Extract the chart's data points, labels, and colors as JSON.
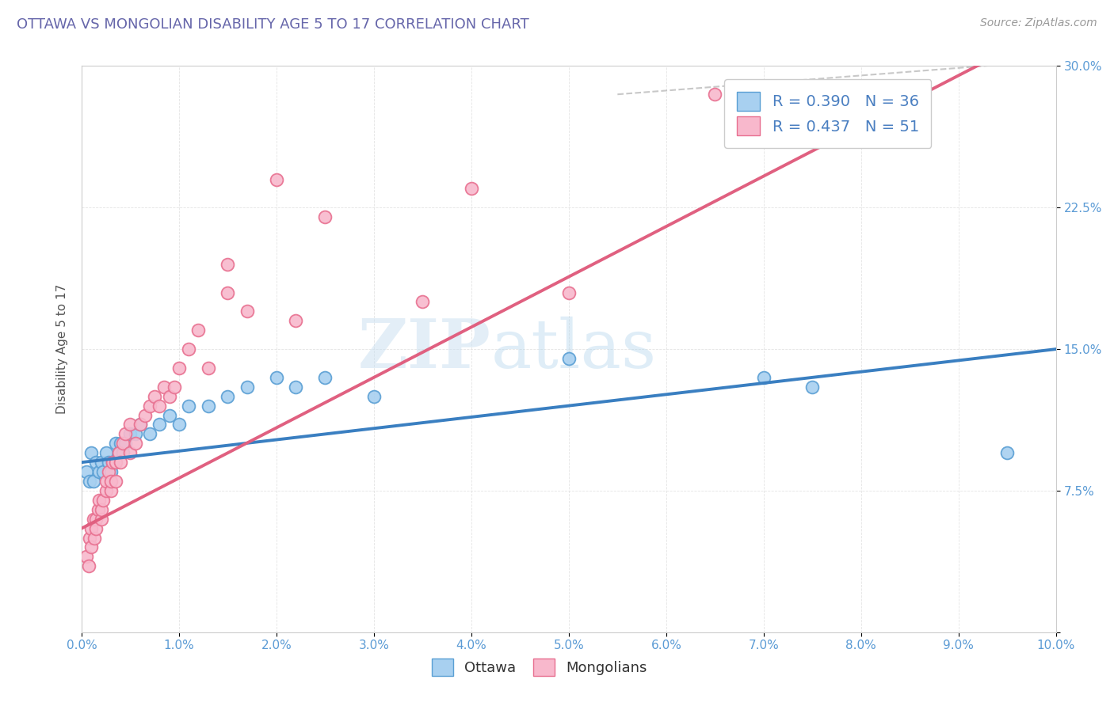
{
  "title": "OTTAWA VS MONGOLIAN DISABILITY AGE 5 TO 17 CORRELATION CHART",
  "source": "Source: ZipAtlas.com",
  "ylabel": "Disability Age 5 to 17",
  "xlim": [
    0.0,
    10.0
  ],
  "ylim": [
    0.0,
    30.0
  ],
  "xticks": [
    0.0,
    1.0,
    2.0,
    3.0,
    4.0,
    5.0,
    6.0,
    7.0,
    8.0,
    9.0,
    10.0
  ],
  "yticks": [
    0.0,
    7.5,
    15.0,
    22.5,
    30.0
  ],
  "xtick_labels": [
    "0.0%",
    "1.0%",
    "2.0%",
    "3.0%",
    "4.0%",
    "5.0%",
    "6.0%",
    "7.0%",
    "8.0%",
    "9.0%",
    "10.0%"
  ],
  "ytick_labels": [
    "",
    "7.5%",
    "15.0%",
    "22.5%",
    "30.0%"
  ],
  "ottawa_R": 0.39,
  "ottawa_N": 36,
  "mongolian_R": 0.437,
  "mongolian_N": 51,
  "ottawa_color": "#a8d0f0",
  "mongolian_color": "#f8b8cc",
  "ottawa_edge_color": "#5a9fd4",
  "mongolian_edge_color": "#e87090",
  "ottawa_line_color": "#3a7fc1",
  "mongolian_line_color": "#e06080",
  "tick_color": "#5b9bd5",
  "legend_text_color": "#4a7fc1",
  "watermark_color": "#d8edf8",
  "title_color": "#6666aa",
  "source_color": "#999999",
  "ottawa_scatter_x": [
    0.05,
    0.08,
    0.1,
    0.12,
    0.15,
    0.18,
    0.2,
    0.22,
    0.25,
    0.28,
    0.3,
    0.32,
    0.35,
    0.38,
    0.4,
    0.42,
    0.45,
    0.5,
    0.55,
    0.6,
    0.7,
    0.8,
    0.9,
    1.0,
    1.1,
    1.3,
    1.5,
    1.7,
    2.0,
    2.2,
    2.5,
    3.0,
    5.0,
    7.0,
    7.5,
    9.5
  ],
  "ottawa_scatter_y": [
    8.5,
    8.0,
    9.5,
    8.0,
    9.0,
    8.5,
    9.0,
    8.5,
    9.5,
    9.0,
    8.5,
    9.0,
    10.0,
    9.5,
    10.0,
    9.5,
    10.0,
    10.5,
    10.5,
    11.0,
    10.5,
    11.0,
    11.5,
    11.0,
    12.0,
    12.0,
    12.5,
    13.0,
    13.5,
    13.0,
    13.5,
    12.5,
    14.5,
    13.5,
    13.0,
    9.5
  ],
  "mongolian_scatter_x": [
    0.05,
    0.07,
    0.08,
    0.1,
    0.1,
    0.12,
    0.13,
    0.15,
    0.15,
    0.17,
    0.18,
    0.2,
    0.2,
    0.22,
    0.25,
    0.25,
    0.28,
    0.3,
    0.3,
    0.32,
    0.35,
    0.35,
    0.38,
    0.4,
    0.42,
    0.45,
    0.5,
    0.5,
    0.55,
    0.6,
    0.65,
    0.7,
    0.75,
    0.8,
    0.85,
    0.9,
    0.95,
    1.0,
    1.1,
    1.2,
    1.3,
    1.5,
    1.5,
    1.7,
    2.0,
    2.2,
    2.5,
    3.5,
    4.0,
    5.0,
    6.5
  ],
  "mongolian_scatter_y": [
    4.0,
    3.5,
    5.0,
    4.5,
    5.5,
    6.0,
    5.0,
    6.0,
    5.5,
    6.5,
    7.0,
    6.0,
    6.5,
    7.0,
    7.5,
    8.0,
    8.5,
    7.5,
    8.0,
    9.0,
    8.0,
    9.0,
    9.5,
    9.0,
    10.0,
    10.5,
    9.5,
    11.0,
    10.0,
    11.0,
    11.5,
    12.0,
    12.5,
    12.0,
    13.0,
    12.5,
    13.0,
    14.0,
    15.0,
    16.0,
    14.0,
    18.0,
    19.5,
    17.0,
    24.0,
    16.5,
    22.0,
    17.5,
    23.5,
    18.0,
    28.5
  ],
  "ottawa_trend_x0": 0.0,
  "ottawa_trend_y0": 9.0,
  "ottawa_trend_x1": 10.0,
  "ottawa_trend_y1": 15.0,
  "mongolian_trend_x0": 0.0,
  "mongolian_trend_y0": 5.5,
  "mongolian_trend_x1": 9.0,
  "mongolian_trend_y1": 29.5,
  "dash_line_x0": 5.5,
  "dash_line_y0": 30.0,
  "dash_line_x1": 10.0,
  "dash_line_y1": 30.0
}
